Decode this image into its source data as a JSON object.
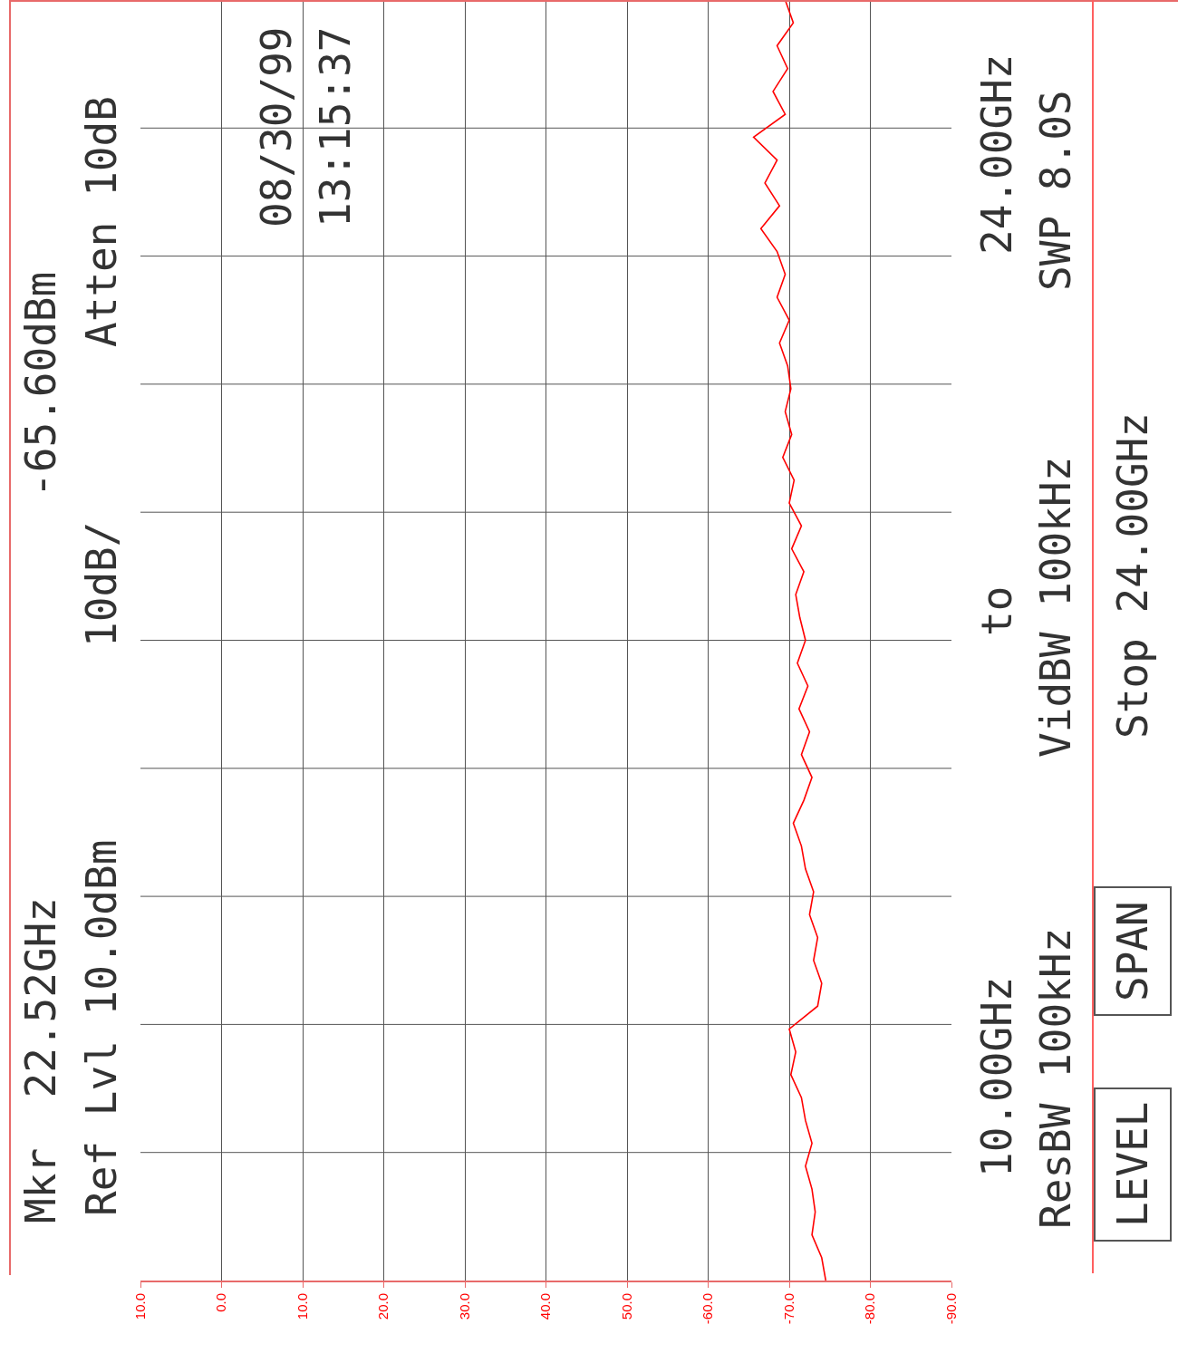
{
  "chart_data": {
    "type": "line",
    "orientation": "horizontal",
    "color": "#ff0000",
    "categories": [
      null,
      null,
      null,
      null,
      null,
      null,
      null,
      null,
      null,
      null,
      null,
      null,
      null,
      null,
      null,
      null,
      null,
      null,
      null,
      null,
      null,
      null,
      null,
      null,
      null,
      null,
      null,
      null,
      null,
      null,
      null,
      null,
      null,
      null,
      null,
      null,
      null,
      null,
      null,
      null,
      null,
      null,
      null,
      null,
      null,
      null,
      null,
      null,
      null,
      null,
      null,
      null,
      null,
      null,
      null,
      null,
      null
    ],
    "values": [
      -69.5,
      -70.5,
      -68.5,
      -69.8,
      -68,
      -69.5,
      -65.6,
      -68.5,
      -67,
      -68.8,
      -66.5,
      -68.5,
      -69.5,
      -68.5,
      -70,
      -68.8,
      -69.8,
      -70.2,
      -69.5,
      -70.3,
      -69.2,
      -70.6,
      -70,
      -71.5,
      -70.3,
      -71.8,
      -70.8,
      -71.3,
      -72,
      -71,
      -72.3,
      -71.2,
      -72.5,
      -71.5,
      -72.8,
      -71.8,
      -70.5,
      -71.5,
      -72,
      -73,
      -72.5,
      -73.5,
      -73,
      -74,
      -73.5,
      -70,
      -70.8,
      -70.2,
      -71.5,
      -72,
      -72.8,
      -72,
      -72.8,
      -73.2,
      -72.8,
      -74,
      -74.5
    ],
    "xlim": [
      10,
      -90
    ],
    "xticks": [
      {
        "value": 10,
        "label": "10.0"
      },
      {
        "value": 0,
        "label": "0.0"
      },
      {
        "value": -10,
        "label": "10.0"
      },
      {
        "value": -20,
        "label": "20.0"
      },
      {
        "value": -30,
        "label": "30.0"
      },
      {
        "value": -40,
        "label": "40.0"
      },
      {
        "value": -50,
        "label": "50.0"
      },
      {
        "value": -60,
        "label": "-60.0"
      },
      {
        "value": -70,
        "label": "-70.0"
      },
      {
        "value": -80,
        "label": "-80.0"
      },
      {
        "value": -90,
        "label": "-90.0"
      }
    ],
    "tick_labels": "x",
    "grid": true,
    "annotations": [
      "Mkr  22.52GHz",
      "-65.60dBm",
      "Ref Lvl 10.0dBm",
      "10dB/",
      "Atten 10dB",
      "08/30/99",
      "13:15:37",
      "10.00GHz",
      "to",
      "24.00GHz",
      "ResBW 100kHz",
      "VidBW 100kHz",
      "SWP 8.0S",
      "LEVEL",
      "SPAN",
      "Stop 24.00GHz"
    ]
  }
}
